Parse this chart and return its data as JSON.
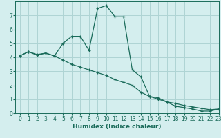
{
  "title": "",
  "xlabel": "Humidex (Indice chaleur)",
  "bg_color": "#d4eeee",
  "grid_color": "#aed4d4",
  "line_color": "#1a6b5a",
  "line1_x": [
    0,
    1,
    2,
    3,
    4,
    5,
    6,
    7,
    8,
    9,
    10,
    11,
    12,
    13,
    14,
    15,
    16,
    17,
    18,
    19,
    20,
    21,
    22,
    23
  ],
  "line1_y": [
    4.1,
    4.4,
    4.2,
    4.3,
    4.1,
    5.0,
    5.5,
    5.5,
    4.5,
    7.5,
    7.7,
    6.9,
    6.9,
    3.1,
    2.6,
    1.2,
    1.1,
    0.8,
    0.5,
    0.4,
    0.3,
    0.15,
    0.15,
    0.3
  ],
  "line2_x": [
    0,
    1,
    2,
    3,
    4,
    5,
    6,
    7,
    8,
    9,
    10,
    11,
    12,
    13,
    14,
    15,
    16,
    17,
    18,
    19,
    20,
    21,
    22,
    23
  ],
  "line2_y": [
    4.1,
    4.4,
    4.15,
    4.3,
    4.1,
    3.8,
    3.5,
    3.3,
    3.1,
    2.9,
    2.7,
    2.4,
    2.2,
    2.0,
    1.5,
    1.2,
    1.0,
    0.8,
    0.7,
    0.55,
    0.45,
    0.35,
    0.25,
    0.3
  ],
  "xlim": [
    -0.5,
    23
  ],
  "ylim": [
    0,
    8
  ],
  "xticks": [
    0,
    1,
    2,
    3,
    4,
    5,
    6,
    7,
    8,
    9,
    10,
    11,
    12,
    13,
    14,
    15,
    16,
    17,
    18,
    19,
    20,
    21,
    22,
    23
  ],
  "yticks": [
    0,
    1,
    2,
    3,
    4,
    5,
    6,
    7
  ],
  "label_fontsize": 6.5,
  "tick_fontsize": 5.5
}
